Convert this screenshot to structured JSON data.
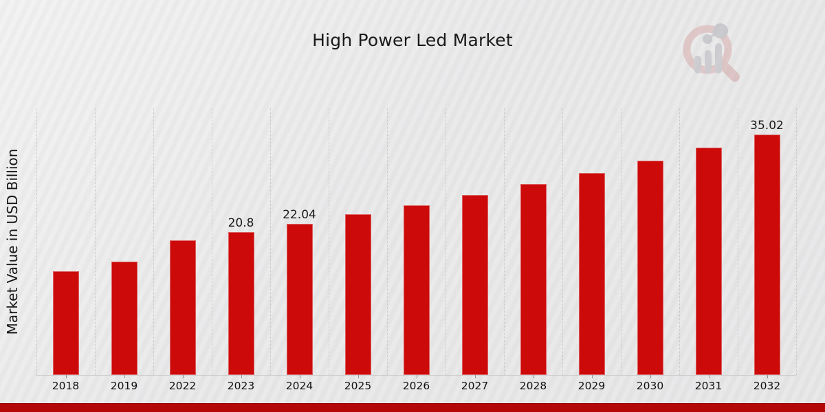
{
  "page": {
    "title": "High Power Led Market"
  },
  "colors": {
    "bar": "#cc0a0a",
    "bottom_strip": "#b40808",
    "background": "#e9e9ea",
    "gridline": "#c6c6c6",
    "text": "#1a1a1a"
  },
  "logo": {
    "name": "magnifier-bar-chart-logo"
  },
  "chart_data": {
    "type": "bar",
    "title": "High Power Led Market",
    "xlabel": "",
    "ylabel": "Market Value in USD Billion",
    "categories": [
      "2018",
      "2019",
      "2022",
      "2023",
      "2024",
      "2025",
      "2026",
      "2027",
      "2028",
      "2029",
      "2030",
      "2031",
      "2032"
    ],
    "values": [
      15.1,
      16.5,
      19.6,
      20.8,
      22.04,
      23.35,
      24.74,
      26.22,
      27.78,
      29.44,
      31.2,
      33.06,
      35.02
    ],
    "data_labels": [
      "",
      "",
      "",
      "20.8",
      "22.04",
      "",
      "",
      "",
      "",
      "",
      "",
      "",
      "35.02"
    ],
    "ylim": [
      0,
      38.8
    ],
    "grid": "vertical-dotted",
    "legend": "none",
    "bar_color": "#cc0a0a"
  }
}
